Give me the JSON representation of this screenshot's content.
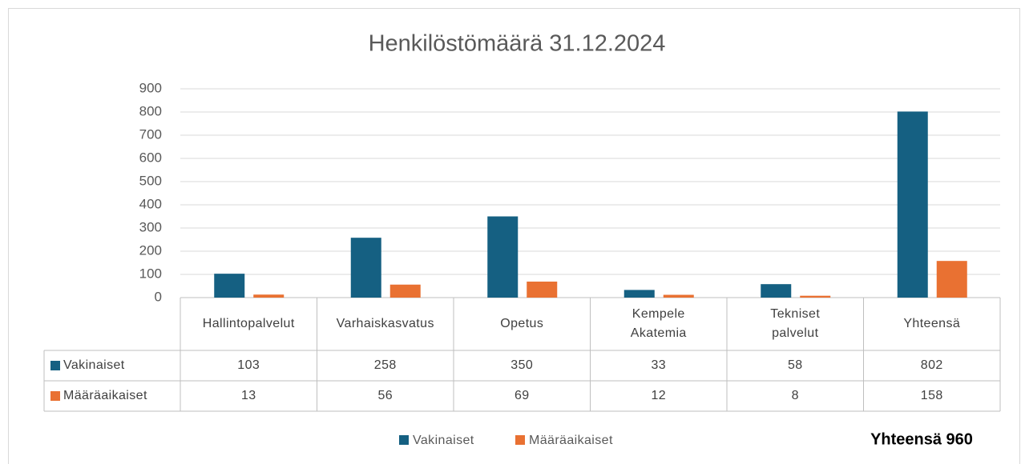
{
  "chart_data": {
    "type": "bar",
    "title": "Henkilöstömäärä 31.12.2024",
    "categories": [
      "Hallintopalvelut",
      "Varhaiskasvatus",
      "Opetus",
      "Kempele\nAkatemia",
      "Tekniset\npalvelut",
      "Yhteensä"
    ],
    "series": [
      {
        "name": "Vakinaiset",
        "color": "#156082",
        "values": [
          103,
          258,
          350,
          33,
          58,
          802
        ]
      },
      {
        "name": "Määräaikaiset",
        "color": "#e97132",
        "values": [
          13,
          56,
          69,
          12,
          8,
          158
        ]
      }
    ],
    "ylim": [
      0,
      900
    ],
    "yticks": [
      0,
      100,
      200,
      300,
      400,
      500,
      600,
      700,
      800,
      900
    ],
    "grid": true,
    "annotation": "Yhteensä 960"
  }
}
